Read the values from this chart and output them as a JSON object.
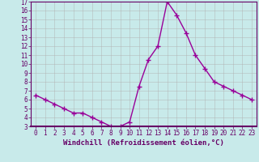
{
  "x": [
    0,
    1,
    2,
    3,
    4,
    5,
    6,
    7,
    8,
    9,
    10,
    11,
    12,
    13,
    14,
    15,
    16,
    17,
    18,
    19,
    20,
    21,
    22,
    23
  ],
  "y": [
    6.5,
    6.0,
    5.5,
    5.0,
    4.5,
    4.5,
    4.0,
    3.5,
    3.0,
    3.0,
    3.5,
    7.5,
    10.5,
    12.0,
    17.0,
    15.5,
    13.5,
    11.0,
    9.5,
    8.0,
    7.5,
    7.0,
    6.5,
    6.0
  ],
  "line_color": "#990099",
  "marker": "+",
  "marker_size": 4,
  "line_width": 1.0,
  "bg_color": "#c8eaea",
  "grid_color": "#b0b0b0",
  "xlabel": "Windchill (Refroidissement éolien,°C)",
  "xlim": [
    -0.5,
    23.5
  ],
  "ylim": [
    3,
    17
  ],
  "yticks": [
    3,
    4,
    5,
    6,
    7,
    8,
    9,
    10,
    11,
    12,
    13,
    14,
    15,
    16,
    17
  ],
  "xticks": [
    0,
    1,
    2,
    3,
    4,
    5,
    6,
    7,
    8,
    9,
    10,
    11,
    12,
    13,
    14,
    15,
    16,
    17,
    18,
    19,
    20,
    21,
    22,
    23
  ],
  "tick_label_fontsize": 5.5,
  "xlabel_fontsize": 6.5,
  "axis_color": "#660066",
  "tick_color": "#660066",
  "spine_color": "#660066",
  "bottom_bar_color": "#660066"
}
